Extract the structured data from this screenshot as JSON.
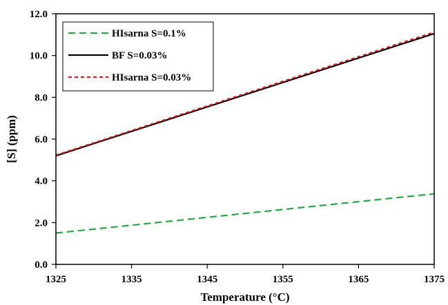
{
  "chart_data": {
    "type": "line",
    "xlabel": "Temperature (°C)",
    "ylabel": "[S] (ppm)",
    "xlim": [
      1325,
      1375
    ],
    "ylim": [
      0,
      12
    ],
    "x_ticks": [
      "1325",
      "1335",
      "1345",
      "1355",
      "1365",
      "1375"
    ],
    "y_ticks": [
      "0.0",
      "2.0",
      "4.0",
      "6.0",
      "8.0",
      "10.0",
      "12.0"
    ],
    "grid": false,
    "legend_position": "top-left",
    "series": [
      {
        "name": "HIsarna S=0.1%",
        "x": [
          1325,
          1375
        ],
        "y": [
          1.5,
          3.38
        ],
        "color": "#22a83c",
        "dash": "long-dash"
      },
      {
        "name": "BF S=0.03%",
        "x": [
          1325,
          1375
        ],
        "y": [
          5.2,
          11.05
        ],
        "color": "#000000",
        "dash": "solid"
      },
      {
        "name": "HIsarna S=0.03%",
        "x": [
          1325,
          1375
        ],
        "y": [
          5.23,
          11.12
        ],
        "color": "#e31a1c",
        "dash": "short-dash"
      }
    ]
  }
}
